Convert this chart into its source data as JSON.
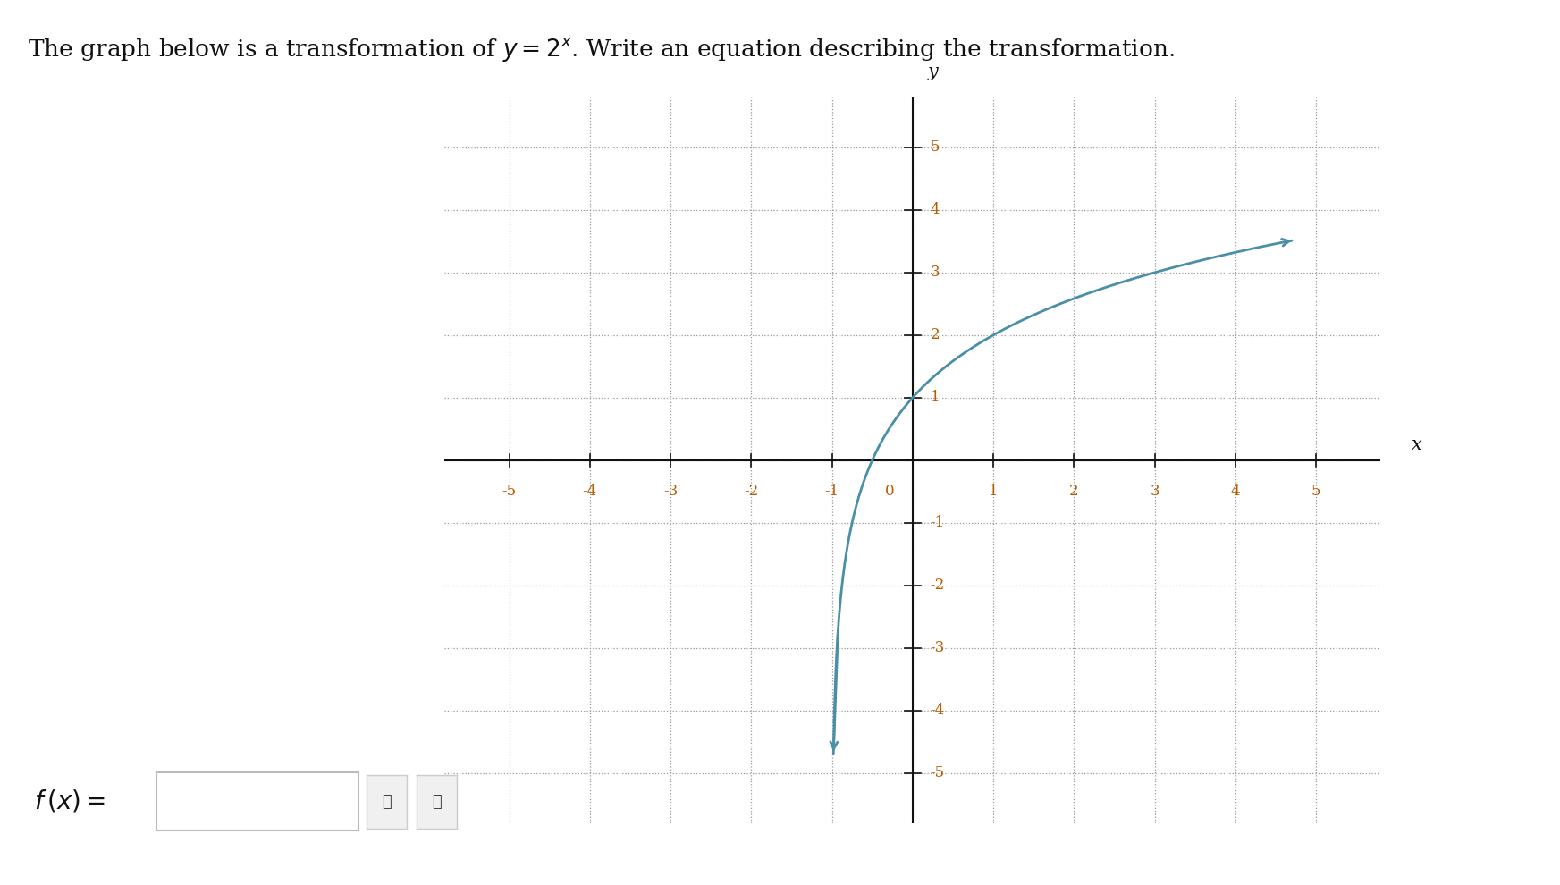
{
  "background_color": "#ffffff",
  "curve_color": "#4a8fa8",
  "curve_linewidth": 2.0,
  "xlim": [
    -5.8,
    5.8
  ],
  "ylim": [
    -5.8,
    5.8
  ],
  "xticks": [
    -5,
    -4,
    -3,
    -2,
    -1,
    1,
    2,
    3,
    4,
    5
  ],
  "yticks": [
    -5,
    -4,
    -3,
    -2,
    -1,
    1,
    2,
    3,
    4,
    5
  ],
  "grid_color": "#999999",
  "grid_style": "dotted",
  "grid_linewidth": 0.9,
  "axis_color": "#111111",
  "tick_label_color": "#b85c00",
  "tick_fontsize": 12,
  "xlabel": "x",
  "ylabel": "y",
  "axis_label_fontsize": 15,
  "title_fontsize": 19,
  "fx_fontsize": 20
}
